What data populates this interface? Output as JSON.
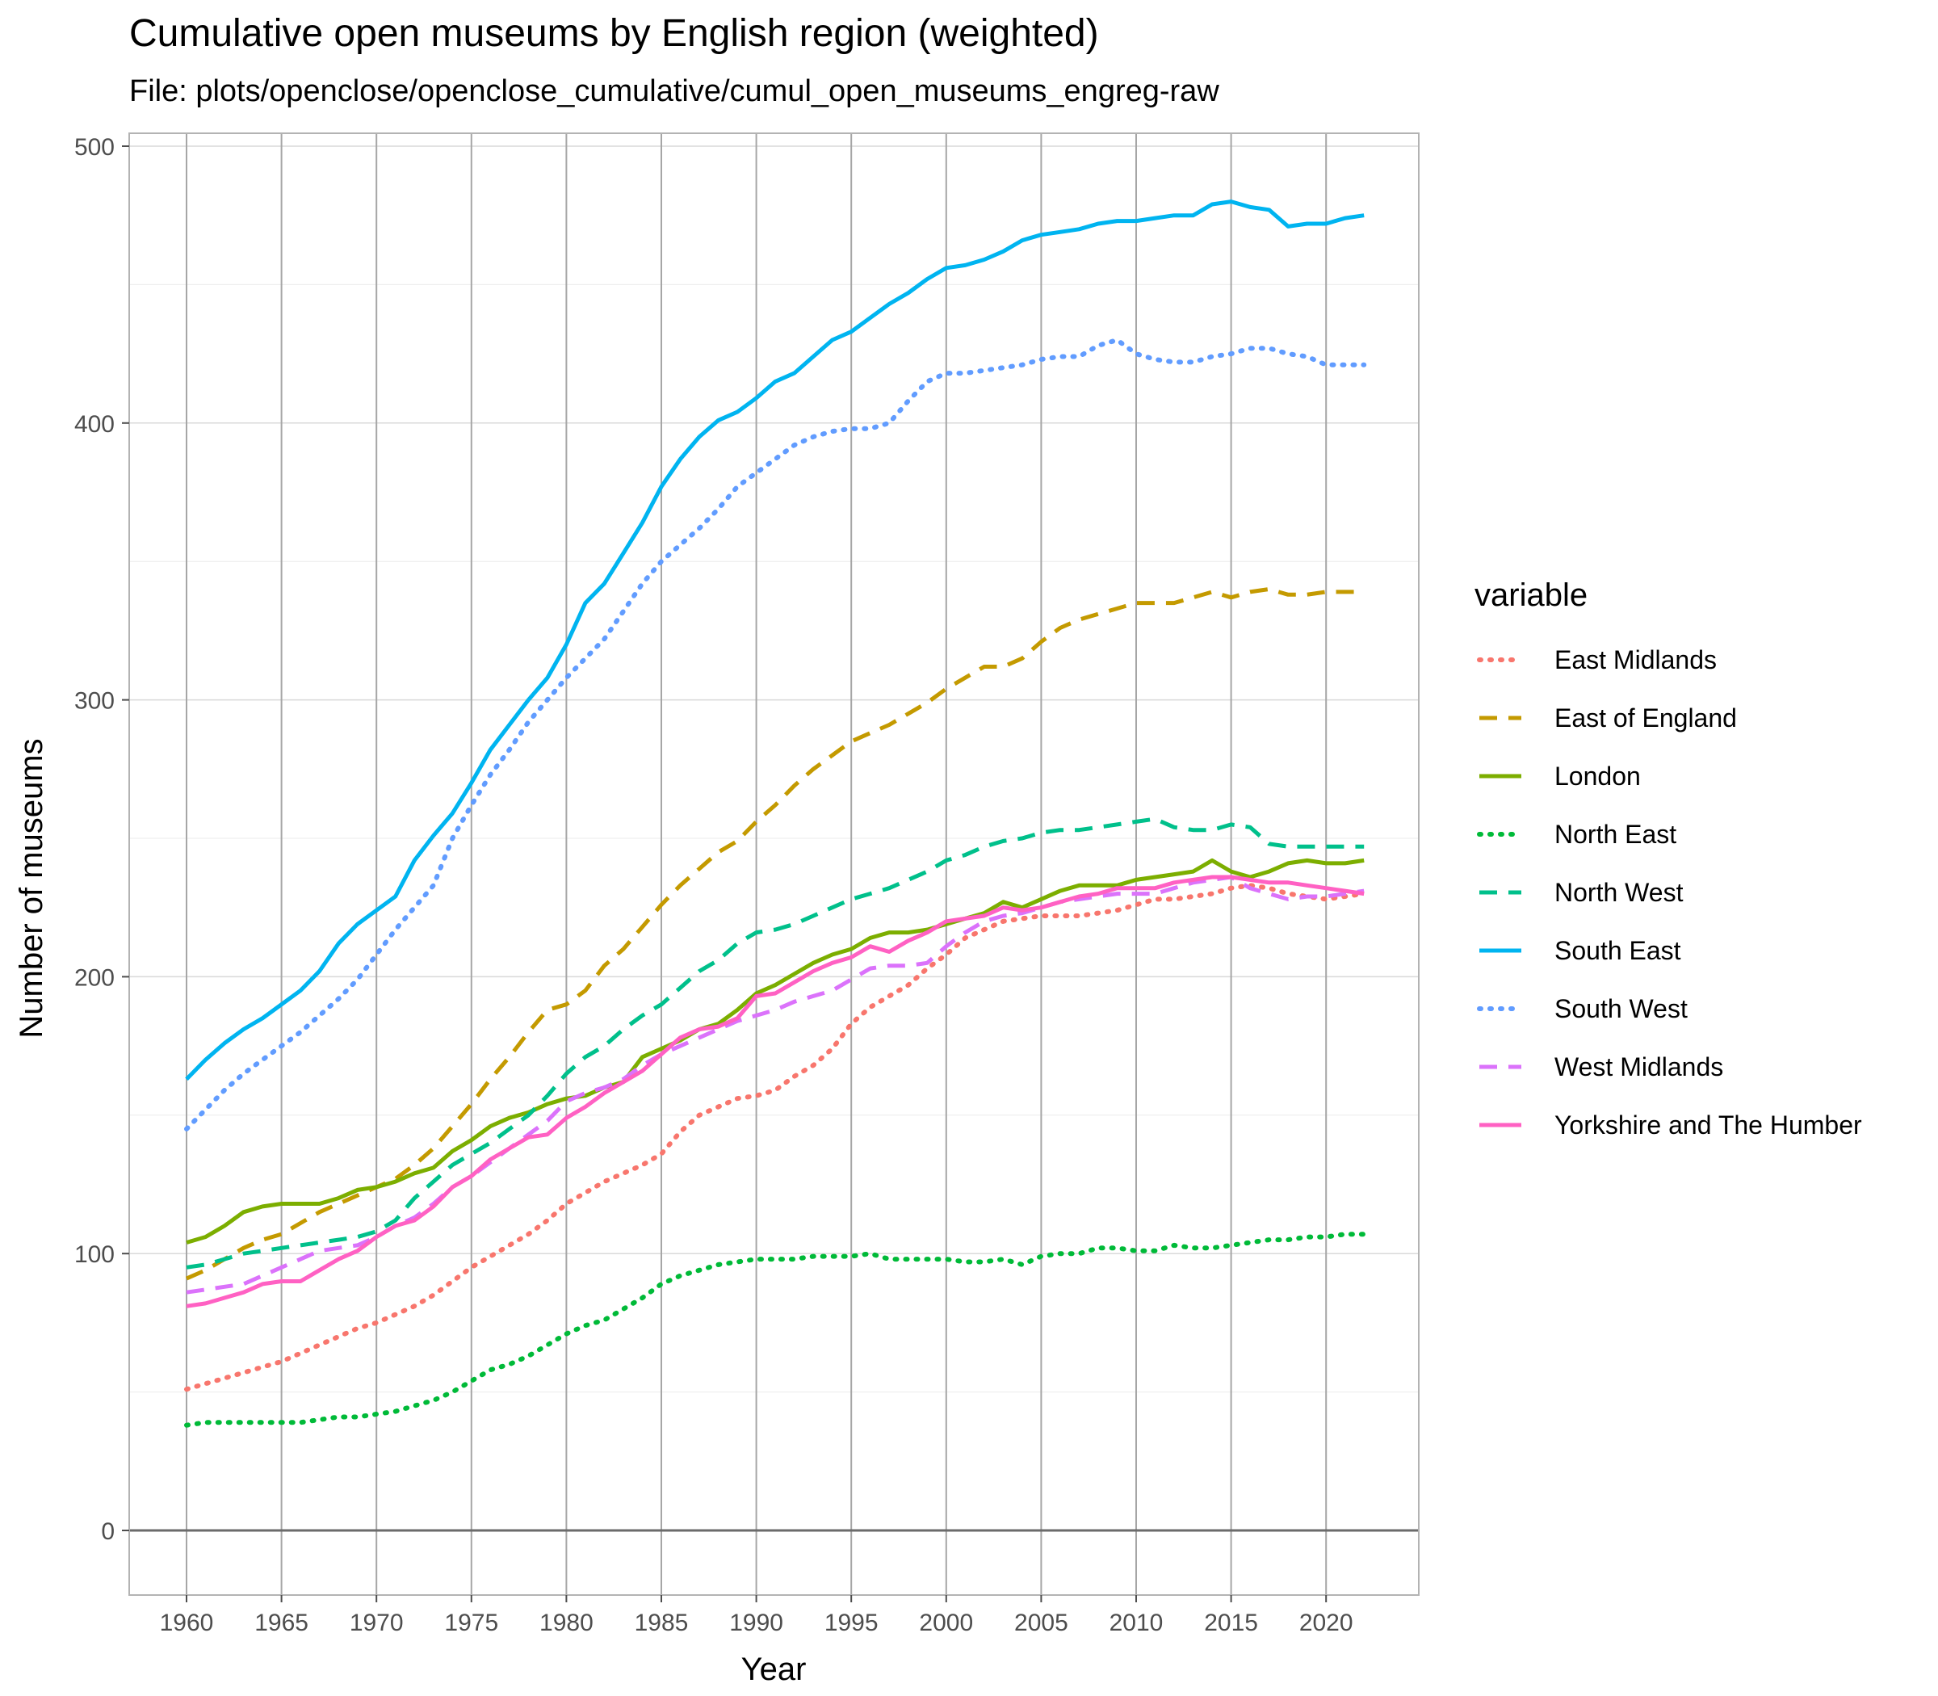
{
  "chart_data": {
    "type": "line",
    "title": "Cumulative open museums by English region (weighted)",
    "subtitle": "File: plots/openclose/openclose_cumulative/cumul_open_museums_engreg-raw",
    "xlabel": "Year",
    "ylabel": "Number of museums",
    "xlim": [
      1957,
      2025
    ],
    "ylim": [
      -23,
      500
    ],
    "x_ticks": [
      1960,
      1965,
      1970,
      1975,
      1980,
      1985,
      1990,
      1995,
      2000,
      2005,
      2010,
      2015,
      2020
    ],
    "y_ticks": [
      0,
      100,
      200,
      300,
      400,
      500
    ],
    "grid": true,
    "legend_title": "variable",
    "legend_position": "right",
    "x": [
      1960,
      1961,
      1962,
      1963,
      1964,
      1965,
      1966,
      1967,
      1968,
      1969,
      1970,
      1971,
      1972,
      1973,
      1974,
      1975,
      1976,
      1977,
      1978,
      1979,
      1980,
      1981,
      1982,
      1983,
      1984,
      1985,
      1986,
      1987,
      1988,
      1989,
      1990,
      1991,
      1992,
      1993,
      1994,
      1995,
      1996,
      1997,
      1998,
      1999,
      2000,
      2001,
      2002,
      2003,
      2004,
      2005,
      2006,
      2007,
      2008,
      2009,
      2010,
      2011,
      2012,
      2013,
      2014,
      2015,
      2016,
      2017,
      2018,
      2019,
      2020,
      2021,
      2022
    ],
    "series": [
      {
        "name": "East Midlands",
        "color": "#F8766D",
        "dash": "dotted",
        "values": [
          51,
          53,
          55,
          57,
          59,
          61,
          64,
          67,
          70,
          73,
          75,
          78,
          81,
          85,
          90,
          95,
          99,
          103,
          107,
          112,
          118,
          122,
          126,
          129,
          132,
          136,
          144,
          150,
          153,
          156,
          157,
          159,
          164,
          168,
          174,
          183,
          189,
          193,
          197,
          203,
          208,
          214,
          217,
          220,
          221,
          222,
          222,
          222,
          223,
          224,
          226,
          228,
          228,
          229,
          230,
          232,
          233,
          232,
          230,
          229,
          228,
          229,
          230
        ]
      },
      {
        "name": "East of England",
        "color": "#C49A00",
        "dash": "dashed",
        "values": [
          91,
          94,
          98,
          102,
          105,
          107,
          111,
          115,
          118,
          121,
          124,
          127,
          132,
          138,
          146,
          154,
          163,
          171,
          180,
          188,
          190,
          195,
          204,
          210,
          218,
          226,
          233,
          239,
          245,
          249,
          256,
          262,
          269,
          275,
          280,
          285,
          288,
          291,
          295,
          299,
          304,
          308,
          312,
          312,
          315,
          321,
          326,
          329,
          331,
          333,
          335,
          335,
          335,
          337,
          339,
          337,
          339,
          340,
          338,
          338,
          339,
          339,
          339
        ]
      },
      {
        "name": "London",
        "color": "#7CAE00",
        "dash": "solid",
        "values": [
          104,
          106,
          110,
          115,
          117,
          118,
          118,
          118,
          120,
          123,
          124,
          126,
          129,
          131,
          137,
          141,
          146,
          149,
          151,
          154,
          156,
          157,
          160,
          162,
          171,
          174,
          177,
          181,
          183,
          188,
          194,
          197,
          201,
          205,
          208,
          210,
          214,
          216,
          216,
          217,
          219,
          221,
          223,
          227,
          225,
          228,
          231,
          233,
          233,
          233,
          235,
          236,
          237,
          238,
          242,
          238,
          236,
          238,
          241,
          242,
          241,
          241,
          242
        ]
      },
      {
        "name": "North East",
        "color": "#00BA38",
        "dash": "dotted",
        "values": [
          38,
          39,
          39,
          39,
          39,
          39,
          39,
          40,
          41,
          41,
          42,
          43,
          45,
          47,
          50,
          54,
          58,
          60,
          63,
          67,
          71,
          74,
          76,
          80,
          84,
          89,
          92,
          94,
          96,
          97,
          98,
          98,
          98,
          99,
          99,
          99,
          100,
          98,
          98,
          98,
          98,
          97,
          97,
          98,
          96,
          99,
          100,
          100,
          102,
          102,
          101,
          101,
          103,
          102,
          102,
          103,
          104,
          105,
          105,
          106,
          106,
          107,
          107
        ]
      },
      {
        "name": "North West",
        "color": "#00C08B",
        "dash": "dashed",
        "values": [
          95,
          96,
          98,
          100,
          101,
          102,
          103,
          104,
          105,
          106,
          108,
          112,
          120,
          126,
          132,
          136,
          140,
          145,
          150,
          157,
          165,
          171,
          175,
          181,
          186,
          190,
          196,
          202,
          206,
          212,
          216,
          217,
          219,
          222,
          225,
          228,
          230,
          232,
          235,
          238,
          242,
          244,
          247,
          249,
          250,
          252,
          253,
          253,
          254,
          255,
          256,
          257,
          254,
          253,
          253,
          255,
          254,
          248,
          247,
          247,
          247,
          247,
          247
        ]
      },
      {
        "name": "South East",
        "color": "#00B4F0",
        "dash": "solid",
        "values": [
          163,
          170,
          176,
          181,
          185,
          190,
          195,
          202,
          212,
          219,
          224,
          229,
          242,
          251,
          259,
          270,
          282,
          291,
          300,
          308,
          320,
          335,
          342,
          353,
          364,
          377,
          387,
          395,
          401,
          404,
          409,
          415,
          418,
          424,
          430,
          433,
          438,
          443,
          447,
          452,
          456,
          457,
          459,
          462,
          466,
          468,
          469,
          470,
          472,
          473,
          473,
          474,
          475,
          475,
          479,
          480,
          478,
          477,
          471,
          472,
          472,
          474,
          475
        ]
      },
      {
        "name": "South West",
        "color": "#619CFF",
        "dash": "dotted",
        "values": [
          145,
          152,
          159,
          165,
          170,
          175,
          180,
          186,
          192,
          199,
          208,
          217,
          225,
          233,
          250,
          262,
          273,
          282,
          292,
          300,
          308,
          315,
          322,
          332,
          342,
          350,
          356,
          362,
          369,
          377,
          382,
          387,
          392,
          395,
          397,
          398,
          398,
          400,
          408,
          415,
          418,
          418,
          419,
          420,
          421,
          423,
          424,
          424,
          428,
          430,
          425,
          423,
          422,
          422,
          424,
          425,
          427,
          427,
          425,
          424,
          421,
          421,
          421
        ]
      },
      {
        "name": "West Midlands",
        "color": "#DB72FB",
        "dash": "dashed",
        "values": [
          86,
          87,
          88,
          89,
          92,
          95,
          98,
          101,
          102,
          103,
          106,
          110,
          113,
          118,
          124,
          128,
          133,
          138,
          143,
          148,
          155,
          158,
          160,
          163,
          168,
          172,
          175,
          178,
          181,
          184,
          186,
          188,
          191,
          193,
          195,
          199,
          203,
          204,
          204,
          205,
          211,
          216,
          220,
          222,
          223,
          225,
          227,
          228,
          229,
          230,
          230,
          230,
          232,
          234,
          235,
          236,
          232,
          230,
          228,
          229,
          229,
          230,
          231
        ]
      },
      {
        "name": "Yorkshire and The Humber",
        "color": "#FF61C3",
        "dash": "solid",
        "values": [
          81,
          82,
          84,
          86,
          89,
          90,
          90,
          94,
          98,
          101,
          106,
          110,
          112,
          117,
          124,
          128,
          134,
          138,
          142,
          143,
          149,
          153,
          158,
          162,
          166,
          172,
          178,
          181,
          182,
          185,
          193,
          194,
          198,
          202,
          205,
          207,
          211,
          209,
          213,
          216,
          220,
          221,
          222,
          225,
          224,
          225,
          227,
          229,
          230,
          232,
          232,
          232,
          234,
          235,
          236,
          236,
          235,
          234,
          234,
          233,
          232,
          231,
          230
        ]
      }
    ]
  }
}
